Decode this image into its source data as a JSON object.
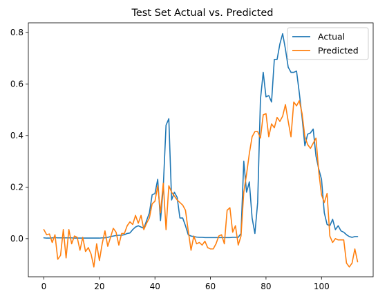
{
  "chart_data": {
    "type": "line",
    "title": "Test Set Actual vs. Predicted",
    "xlabel": "",
    "ylabel": "",
    "xlim": [
      -5.6,
      118.6
    ],
    "ylim": [
      -0.148,
      0.837
    ],
    "xticks": [
      0,
      20,
      40,
      60,
      80,
      100
    ],
    "xtick_labels": [
      "0",
      "20",
      "40",
      "60",
      "80",
      "100"
    ],
    "yticks": [
      0.0,
      0.2,
      0.4,
      0.6,
      0.8
    ],
    "ytick_labels": [
      "0.0",
      "0.2",
      "0.4",
      "0.6",
      "0.8"
    ],
    "grid": false,
    "legend": "top-right",
    "x": [
      0,
      1,
      2,
      3,
      4,
      5,
      6,
      7,
      8,
      9,
      10,
      11,
      12,
      13,
      14,
      15,
      16,
      17,
      18,
      19,
      20,
      21,
      22,
      23,
      24,
      25,
      26,
      27,
      28,
      29,
      30,
      31,
      32,
      33,
      34,
      35,
      36,
      37,
      38,
      39,
      40,
      41,
      42,
      43,
      44,
      45,
      46,
      47,
      48,
      49,
      50,
      51,
      52,
      53,
      54,
      55,
      56,
      57,
      58,
      59,
      60,
      61,
      62,
      63,
      64,
      65,
      66,
      67,
      68,
      69,
      70,
      71,
      72,
      73,
      74,
      75,
      76,
      77,
      78,
      79,
      80,
      81,
      82,
      83,
      84,
      85,
      86,
      87,
      88,
      89,
      90,
      91,
      92,
      93,
      94,
      95,
      96,
      97,
      98,
      99,
      100,
      101,
      102,
      103,
      104,
      105,
      106,
      107,
      108,
      109,
      110,
      111,
      112,
      113
    ],
    "series": [
      {
        "name": "Actual",
        "color": "#1f77b4",
        "values": [
          0.003,
          0.002,
          0.002,
          0.003,
          0.004,
          0.003,
          0.003,
          0.003,
          0.003,
          0.003,
          0.003,
          0.002,
          0.002,
          0.002,
          0.002,
          0.002,
          0.002,
          0.002,
          0.002,
          0.002,
          0.002,
          0.003,
          0.003,
          0.005,
          0.008,
          0.01,
          0.012,
          0.013,
          0.013,
          0.015,
          0.02,
          0.022,
          0.035,
          0.045,
          0.05,
          0.045,
          0.04,
          0.07,
          0.1,
          0.17,
          0.175,
          0.23,
          0.07,
          0.2,
          0.44,
          0.465,
          0.15,
          0.18,
          0.16,
          0.08,
          0.08,
          0.05,
          0.015,
          0.01,
          0.008,
          0.006,
          0.005,
          0.005,
          0.004,
          0.004,
          0.004,
          0.004,
          0.004,
          0.004,
          0.004,
          0.004,
          0.004,
          0.004,
          0.005,
          0.005,
          0.005,
          0.02,
          0.3,
          0.18,
          0.22,
          0.08,
          0.02,
          0.14,
          0.54,
          0.645,
          0.55,
          0.555,
          0.53,
          0.695,
          0.695,
          0.755,
          0.795,
          0.735,
          0.665,
          0.645,
          0.645,
          0.65,
          0.565,
          0.47,
          0.36,
          0.405,
          0.41,
          0.425,
          0.32,
          0.27,
          0.23,
          0.1,
          0.055,
          0.05,
          0.075,
          0.035,
          0.05,
          0.03,
          0.025,
          0.015,
          0.008,
          0.005,
          0.008,
          0.008
        ]
      },
      {
        "name": "Predicted",
        "color": "#ff7f0e",
        "values": [
          0.035,
          0.015,
          0.018,
          -0.015,
          0.015,
          -0.08,
          -0.065,
          0.035,
          -0.075,
          0.035,
          -0.02,
          0.01,
          0.005,
          -0.045,
          0.005,
          -0.05,
          -0.035,
          -0.06,
          -0.11,
          -0.02,
          -0.085,
          -0.02,
          0.03,
          -0.03,
          0.005,
          0.04,
          0.025,
          -0.025,
          0.02,
          0.02,
          0.05,
          0.065,
          0.055,
          0.09,
          0.06,
          0.09,
          0.035,
          0.06,
          0.08,
          0.135,
          0.145,
          0.205,
          0.1,
          0.215,
          0.035,
          0.205,
          0.18,
          0.165,
          0.15,
          0.14,
          0.13,
          0.11,
          0.03,
          -0.045,
          0.01,
          -0.02,
          -0.015,
          -0.025,
          -0.01,
          -0.035,
          -0.04,
          -0.04,
          -0.02,
          0.01,
          0.015,
          -0.02,
          0.11,
          0.12,
          0.025,
          0.05,
          -0.025,
          0.01,
          0.18,
          0.25,
          0.33,
          0.395,
          0.415,
          0.415,
          0.39,
          0.48,
          0.485,
          0.395,
          0.445,
          0.43,
          0.47,
          0.455,
          0.475,
          0.52,
          0.455,
          0.395,
          0.53,
          0.515,
          0.535,
          0.485,
          0.395,
          0.365,
          0.35,
          0.37,
          0.39,
          0.26,
          0.17,
          0.14,
          0.175,
          0.01,
          -0.015,
          0.0,
          -0.005,
          -0.005,
          -0.005,
          -0.095,
          -0.11,
          -0.095,
          -0.04,
          -0.09
        ]
      }
    ]
  }
}
